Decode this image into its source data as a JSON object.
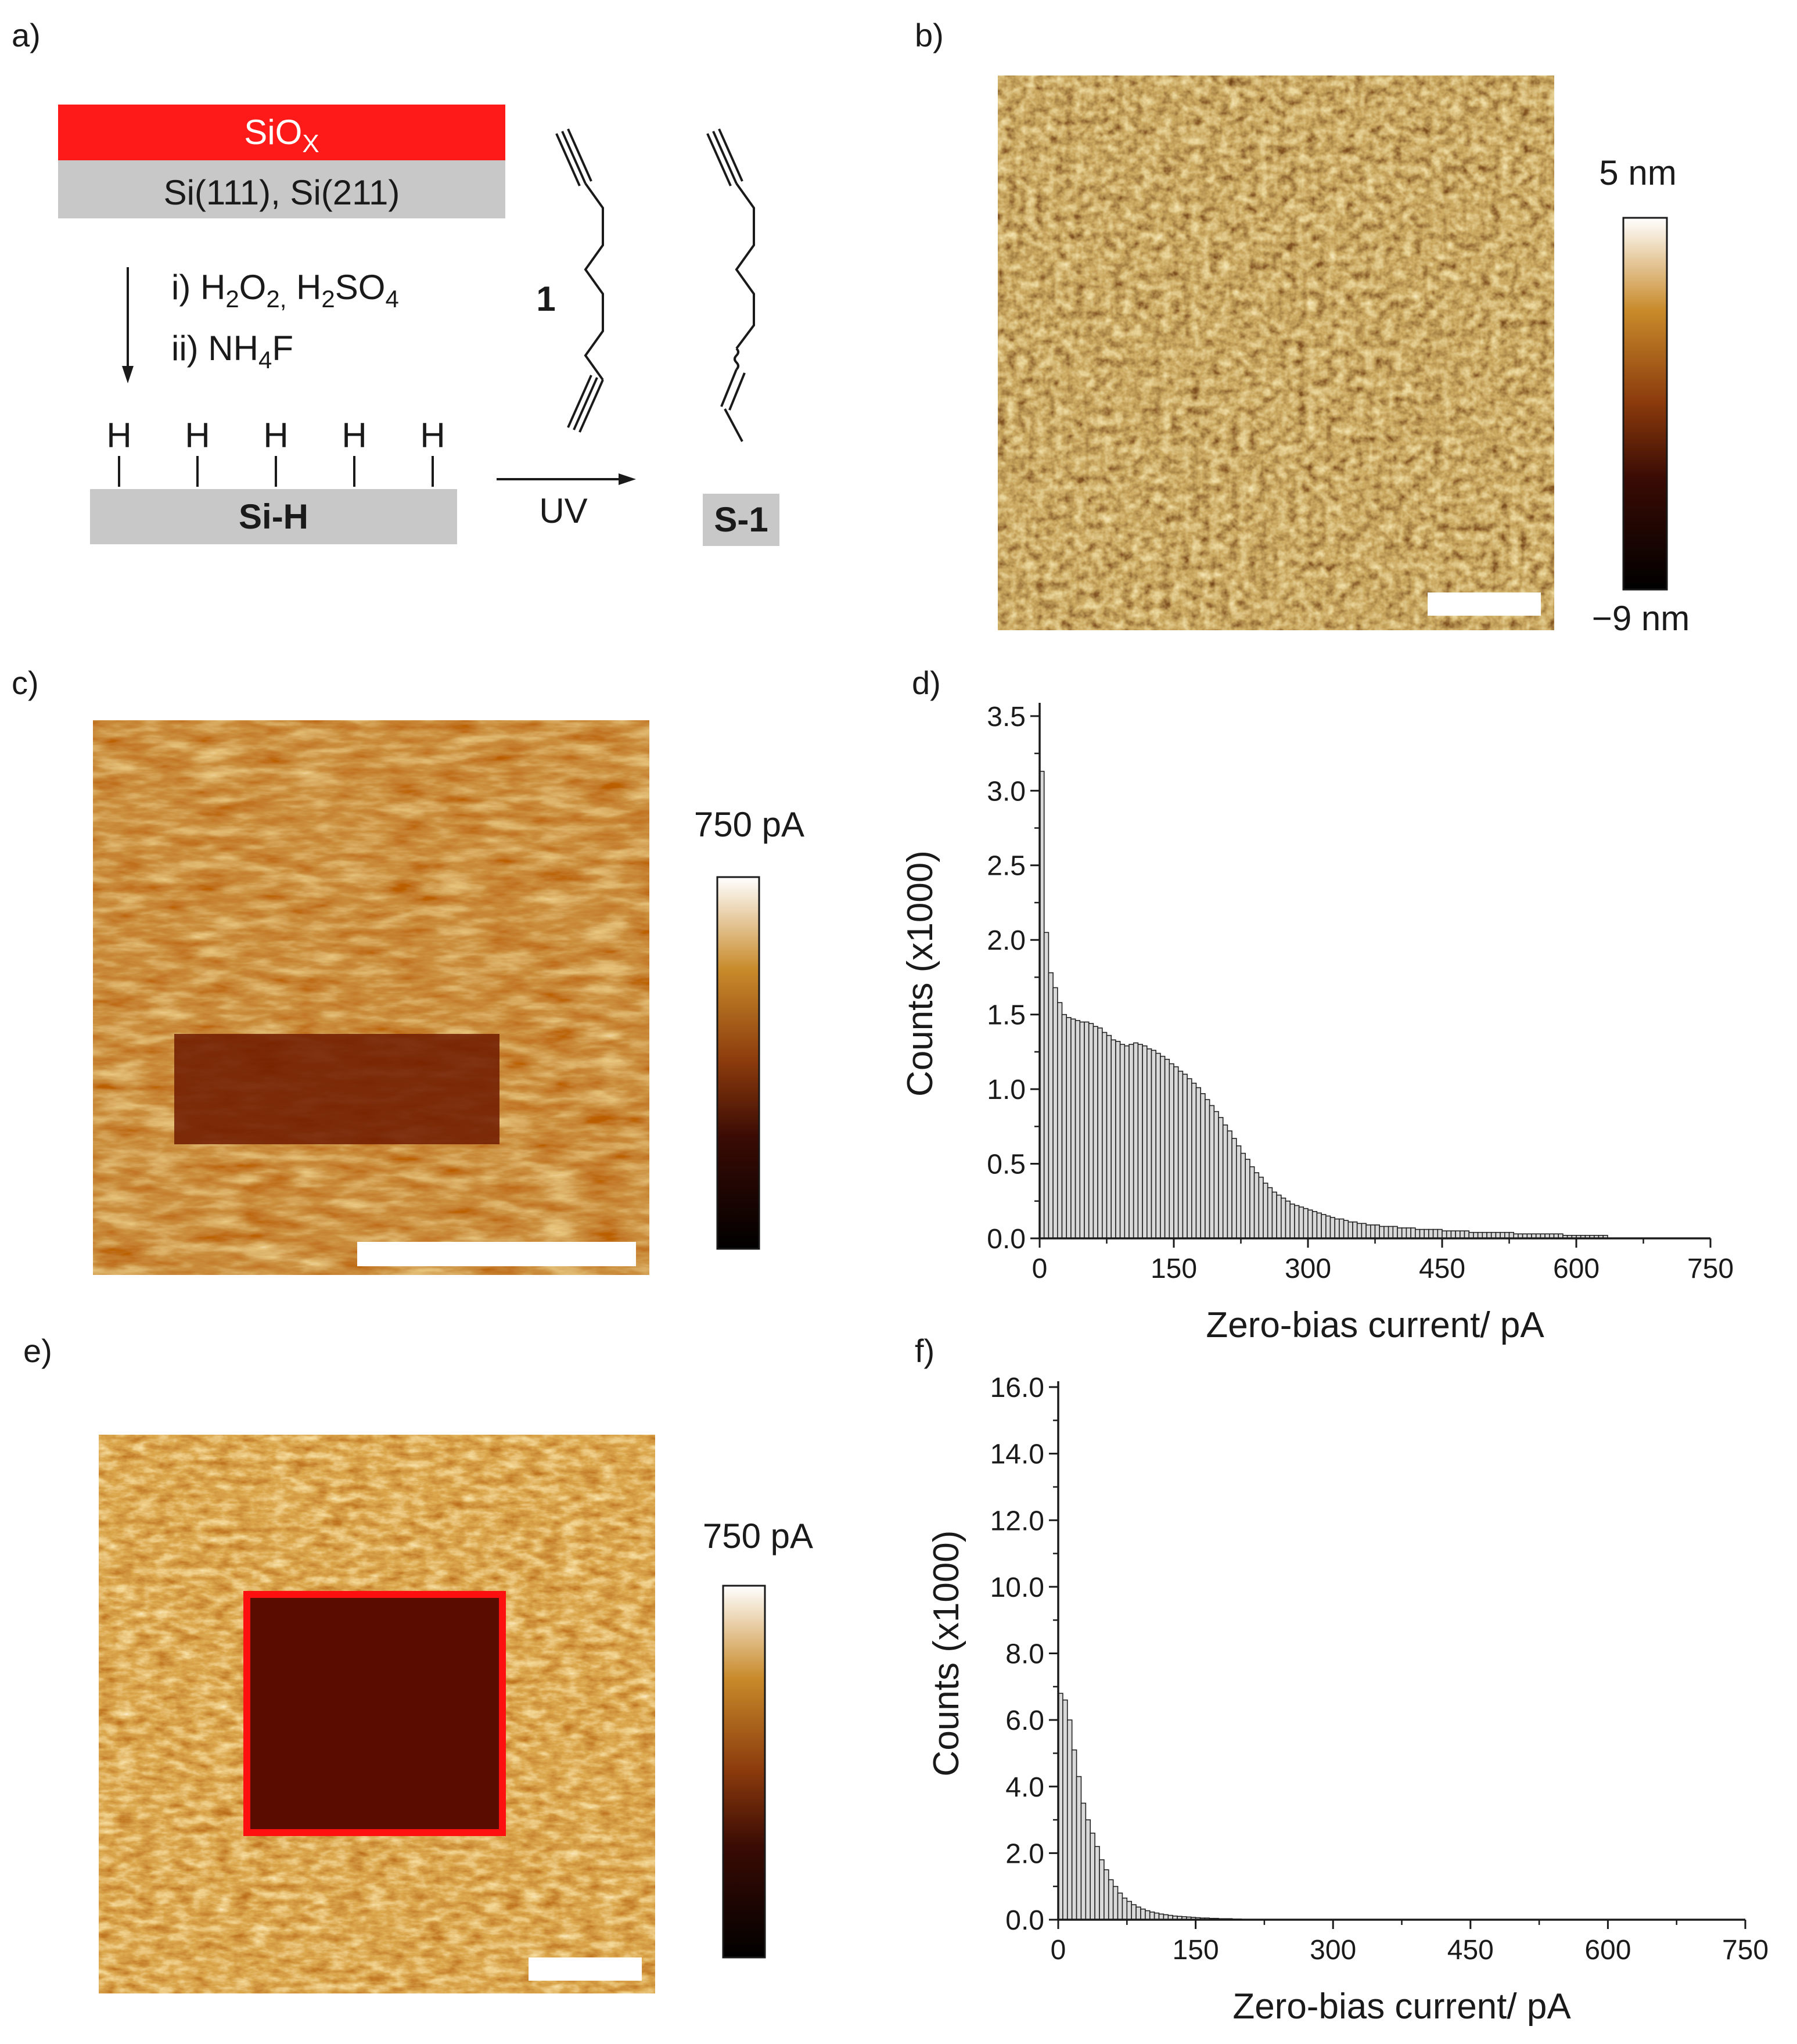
{
  "panels": {
    "a": "a)",
    "b": "b)",
    "c": "c)",
    "d": "d)",
    "e": "e)",
    "f": "f)"
  },
  "scheme": {
    "oxide_base": "SiO",
    "oxide_sub": "X",
    "substrate": "Si(111), Si(211)",
    "step1_prefix": "i) H",
    "step1_sub1": "2",
    "step1_mid1": "O",
    "step1_sub2": "2,",
    "step1_mid2": " H",
    "step1_sub3": "2",
    "step1_mid3": "SO",
    "step1_sub4": "4",
    "step2_prefix": "ii) NH",
    "step2_sub": "4",
    "step2_suffix": "F",
    "h_atoms": [
      "H",
      "H",
      "H",
      "H",
      "H"
    ],
    "surface_label": "Si-H",
    "uv_label": "UV",
    "compound_label": "1",
    "product_label": "S-1",
    "colors": {
      "oxide": "#ff1a1a",
      "substrate": "#c8c8c8"
    }
  },
  "colorbars": {
    "b_top": "5 nm",
    "b_bottom": "−9 nm",
    "c_top": "750 pA",
    "e_top": "750 pA"
  },
  "chart_data": [
    {
      "panel": "d",
      "type": "bar",
      "xlabel": "Zero-bias current/ pA",
      "ylabel": "Counts (x1000)",
      "xlim": [
        0,
        750
      ],
      "ylim": [
        0,
        3.55
      ],
      "xticks": [
        0,
        150,
        300,
        450,
        600,
        750
      ],
      "yticks": [
        0.0,
        0.5,
        1.0,
        1.5,
        2.0,
        2.5,
        3.0,
        3.5
      ],
      "xtick_labels": [
        "0",
        "150",
        "300",
        "450",
        "600",
        "750"
      ],
      "ytick_labels": [
        "0.0",
        "0.5",
        "1.0",
        "1.5",
        "2.0",
        "2.5",
        "3.0",
        "3.5"
      ],
      "bin_width": 5,
      "x_start": 0,
      "values": [
        3.13,
        2.05,
        1.78,
        1.68,
        1.58,
        1.5,
        1.48,
        1.47,
        1.46,
        1.45,
        1.45,
        1.44,
        1.42,
        1.41,
        1.38,
        1.36,
        1.33,
        1.32,
        1.3,
        1.29,
        1.3,
        1.31,
        1.3,
        1.29,
        1.27,
        1.26,
        1.24,
        1.22,
        1.2,
        1.17,
        1.15,
        1.12,
        1.1,
        1.07,
        1.04,
        1.01,
        0.97,
        0.93,
        0.89,
        0.85,
        0.81,
        0.76,
        0.72,
        0.67,
        0.62,
        0.57,
        0.53,
        0.48,
        0.44,
        0.41,
        0.37,
        0.34,
        0.31,
        0.29,
        0.27,
        0.25,
        0.23,
        0.22,
        0.21,
        0.2,
        0.19,
        0.18,
        0.17,
        0.16,
        0.15,
        0.14,
        0.13,
        0.13,
        0.12,
        0.11,
        0.11,
        0.1,
        0.1,
        0.09,
        0.09,
        0.09,
        0.08,
        0.08,
        0.08,
        0.08,
        0.07,
        0.07,
        0.07,
        0.07,
        0.06,
        0.06,
        0.06,
        0.06,
        0.06,
        0.06,
        0.05,
        0.05,
        0.05,
        0.05,
        0.05,
        0.05,
        0.04,
        0.04,
        0.04,
        0.04,
        0.04,
        0.04,
        0.04,
        0.04,
        0.04,
        0.04,
        0.03,
        0.03,
        0.03,
        0.03,
        0.03,
        0.03,
        0.03,
        0.03,
        0.03,
        0.03,
        0.03,
        0.02,
        0.02,
        0.02,
        0.02,
        0.02,
        0.02,
        0.02,
        0.02,
        0.02,
        0.02
      ]
    },
    {
      "panel": "f",
      "type": "bar",
      "xlabel": "Zero-bias current/ pA",
      "ylabel": "Counts (x1000)",
      "xlim": [
        0,
        750
      ],
      "ylim": [
        0,
        16.0
      ],
      "xticks": [
        0,
        150,
        300,
        450,
        600,
        750
      ],
      "yticks": [
        0.0,
        2.0,
        4.0,
        6.0,
        8.0,
        10.0,
        12.0,
        14.0,
        16.0
      ],
      "xtick_labels": [
        "0",
        "150",
        "300",
        "450",
        "600",
        "750"
      ],
      "ytick_labels": [
        "0.0",
        "2.0",
        "4.0",
        "6.0",
        "8.0",
        "10.0",
        "12.0",
        "14.0",
        "16.0"
      ],
      "bin_width": 5,
      "x_start": 0,
      "values": [
        6.8,
        6.6,
        6.0,
        5.1,
        4.3,
        3.5,
        3.0,
        2.6,
        2.2,
        1.8,
        1.5,
        1.2,
        1.0,
        0.8,
        0.65,
        0.55,
        0.45,
        0.38,
        0.32,
        0.27,
        0.23,
        0.2,
        0.17,
        0.15,
        0.13,
        0.11,
        0.1,
        0.09,
        0.08,
        0.07,
        0.06,
        0.05,
        0.05,
        0.04,
        0.04,
        0.03,
        0.03,
        0.03,
        0.02,
        0.02
      ]
    }
  ]
}
